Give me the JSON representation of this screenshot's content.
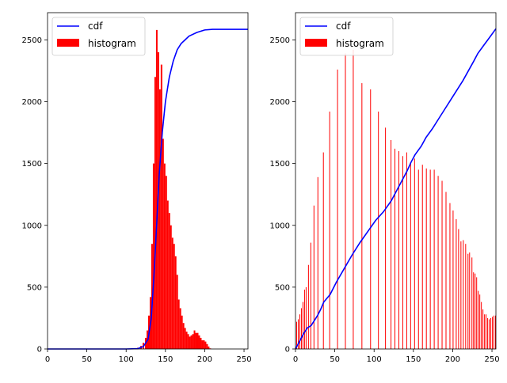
{
  "chart_data": [
    {
      "type": "bar+line",
      "xlim": [
        0,
        255
      ],
      "ylim": [
        0,
        2720
      ],
      "xticks": [
        0,
        50,
        100,
        150,
        200,
        250
      ],
      "yticks": [
        0,
        500,
        1000,
        1500,
        2000,
        2500
      ],
      "legend": {
        "position": "top-left",
        "entries": [
          "cdf",
          "histogram"
        ]
      },
      "colors": {
        "cdf": "#0000ff",
        "histogram": "#ff0000"
      },
      "histogram": {
        "name": "histogram",
        "bins": [
          [
            110,
            0
          ],
          [
            114,
            10
          ],
          [
            118,
            25
          ],
          [
            121,
            50
          ],
          [
            124,
            90
          ],
          [
            126,
            150
          ],
          [
            128,
            270
          ],
          [
            130,
            420
          ],
          [
            132,
            850
          ],
          [
            134,
            1500
          ],
          [
            136,
            2200
          ],
          [
            138,
            2580
          ],
          [
            140,
            2400
          ],
          [
            142,
            2100
          ],
          [
            144,
            2300
          ],
          [
            146,
            1700
          ],
          [
            148,
            1500
          ],
          [
            150,
            1400
          ],
          [
            152,
            1200
          ],
          [
            154,
            1100
          ],
          [
            156,
            1000
          ],
          [
            158,
            900
          ],
          [
            160,
            850
          ],
          [
            162,
            750
          ],
          [
            164,
            600
          ],
          [
            166,
            400
          ],
          [
            168,
            330
          ],
          [
            170,
            270
          ],
          [
            172,
            210
          ],
          [
            174,
            170
          ],
          [
            176,
            140
          ],
          [
            178,
            120
          ],
          [
            180,
            100
          ],
          [
            182,
            110
          ],
          [
            184,
            120
          ],
          [
            186,
            150
          ],
          [
            188,
            130
          ],
          [
            190,
            130
          ],
          [
            192,
            110
          ],
          [
            194,
            90
          ],
          [
            196,
            70
          ],
          [
            198,
            70
          ],
          [
            200,
            60
          ],
          [
            202,
            40
          ],
          [
            204,
            20
          ],
          [
            206,
            5
          ],
          [
            208,
            0
          ]
        ]
      },
      "cdf": {
        "name": "cdf",
        "points": [
          [
            0,
            0
          ],
          [
            100,
            0
          ],
          [
            115,
            3
          ],
          [
            122,
            20
          ],
          [
            128,
            80
          ],
          [
            132,
            250
          ],
          [
            135,
            550
          ],
          [
            138,
            900
          ],
          [
            142,
            1400
          ],
          [
            146,
            1750
          ],
          [
            150,
            2000
          ],
          [
            155,
            2200
          ],
          [
            160,
            2330
          ],
          [
            165,
            2420
          ],
          [
            170,
            2470
          ],
          [
            175,
            2500
          ],
          [
            180,
            2530
          ],
          [
            190,
            2560
          ],
          [
            200,
            2580
          ],
          [
            210,
            2585
          ],
          [
            255,
            2585
          ]
        ]
      }
    },
    {
      "type": "bar+line",
      "xlim": [
        0,
        255
      ],
      "ylim": [
        0,
        2720
      ],
      "xticks": [
        0,
        50,
        100,
        150,
        200,
        250
      ],
      "yticks": [
        0,
        500,
        1000,
        1500,
        2000,
        2500
      ],
      "legend": {
        "position": "top-left",
        "entries": [
          "cdf",
          "histogram"
        ]
      },
      "colors": {
        "cdf": "#0000ff",
        "histogram": "#ff0000"
      },
      "histogram": {
        "name": "histogram",
        "bins": [
          [
            1,
            220
          ],
          [
            3,
            240
          ],
          [
            5,
            280
          ],
          [
            7,
            330
          ],
          [
            9,
            380
          ],
          [
            11,
            480
          ],
          [
            13,
            500
          ],
          [
            16,
            680
          ],
          [
            19,
            860
          ],
          [
            23,
            1160
          ],
          [
            28,
            1390
          ],
          [
            35,
            1590
          ],
          [
            43,
            1920
          ],
          [
            53,
            2260
          ],
          [
            63,
            2390
          ],
          [
            73,
            2420
          ],
          [
            84,
            2150
          ],
          [
            95,
            2100
          ],
          [
            105,
            1920
          ],
          [
            114,
            1790
          ],
          [
            121,
            1690
          ],
          [
            126,
            1620
          ],
          [
            131,
            1600
          ],
          [
            136,
            1560
          ],
          [
            141,
            1590
          ],
          [
            146,
            1510
          ],
          [
            151,
            1540
          ],
          [
            156,
            1450
          ],
          [
            161,
            1490
          ],
          [
            166,
            1460
          ],
          [
            171,
            1450
          ],
          [
            176,
            1450
          ],
          [
            181,
            1400
          ],
          [
            186,
            1360
          ],
          [
            191,
            1270
          ],
          [
            196,
            1180
          ],
          [
            200,
            1120
          ],
          [
            204,
            1050
          ],
          [
            207,
            970
          ],
          [
            210,
            870
          ],
          [
            213,
            880
          ],
          [
            216,
            850
          ],
          [
            219,
            770
          ],
          [
            221,
            780
          ],
          [
            224,
            740
          ],
          [
            226,
            620
          ],
          [
            228,
            610
          ],
          [
            230,
            580
          ],
          [
            232,
            470
          ],
          [
            234,
            440
          ],
          [
            236,
            380
          ],
          [
            238,
            320
          ],
          [
            240,
            280
          ],
          [
            242,
            280
          ],
          [
            244,
            250
          ],
          [
            246,
            240
          ],
          [
            248,
            250
          ],
          [
            250,
            260
          ],
          [
            252,
            270
          ],
          [
            254,
            270
          ]
        ]
      },
      "cdf": {
        "name": "cdf",
        "points": [
          [
            0,
            0
          ],
          [
            5,
            60
          ],
          [
            10,
            120
          ],
          [
            15,
            170
          ],
          [
            20,
            190
          ],
          [
            24,
            230
          ],
          [
            28,
            270
          ],
          [
            32,
            320
          ],
          [
            36,
            380
          ],
          [
            44,
            440
          ],
          [
            52,
            540
          ],
          [
            62,
            650
          ],
          [
            72,
            760
          ],
          [
            82,
            860
          ],
          [
            92,
            950
          ],
          [
            102,
            1040
          ],
          [
            112,
            1110
          ],
          [
            122,
            1200
          ],
          [
            132,
            1320
          ],
          [
            137,
            1380
          ],
          [
            142,
            1440
          ],
          [
            147,
            1510
          ],
          [
            152,
            1570
          ],
          [
            160,
            1640
          ],
          [
            166,
            1710
          ],
          [
            174,
            1780
          ],
          [
            182,
            1860
          ],
          [
            190,
            1940
          ],
          [
            197,
            2010
          ],
          [
            205,
            2090
          ],
          [
            213,
            2170
          ],
          [
            220,
            2250
          ],
          [
            227,
            2330
          ],
          [
            232,
            2390
          ],
          [
            240,
            2460
          ],
          [
            247,
            2520
          ],
          [
            255,
            2590
          ]
        ]
      }
    }
  ]
}
